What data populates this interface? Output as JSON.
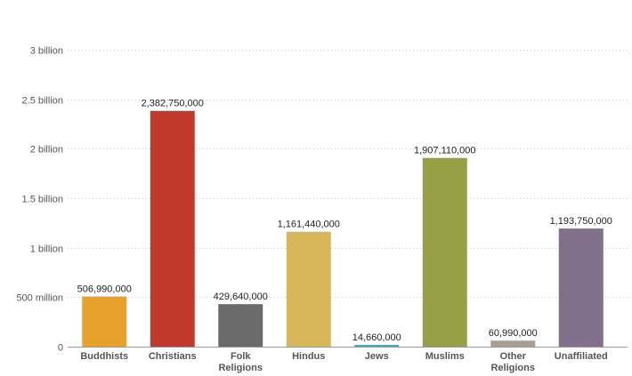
{
  "chart_data": {
    "type": "bar",
    "categories": [
      [
        "Buddhists"
      ],
      [
        "Christians"
      ],
      [
        "Folk",
        "Religions"
      ],
      [
        "Hindus"
      ],
      [
        "Jews"
      ],
      [
        "Muslims"
      ],
      [
        "Other",
        "Religions"
      ],
      [
        "Unaffiliated"
      ]
    ],
    "values": [
      506990000,
      2382750000,
      429640000,
      1161440000,
      14660000,
      1907110000,
      60990000,
      1193750000
    ],
    "data_labels": [
      "506,990,000",
      "2,382,750,000",
      "429,640,000",
      "1,161,440,000",
      "14,660,000",
      "1,907,110,000",
      "60,990,000",
      "1,193,750,000"
    ],
    "colors": [
      "#e9a12e",
      "#c0392b",
      "#6b6b6b",
      "#d8b75a",
      "#48a9c5",
      "#97a045",
      "#a89f91",
      "#817089"
    ],
    "ylim": [
      0,
      3000000000
    ],
    "yticks": [
      0,
      500000000,
      1000000000,
      1500000000,
      2000000000,
      2500000000,
      3000000000
    ],
    "ytick_labels": [
      "0",
      "500 million",
      "1 billion",
      "1.5 billion",
      "2 billion",
      "2.5 billion",
      "3 billion"
    ],
    "grid": true
  }
}
